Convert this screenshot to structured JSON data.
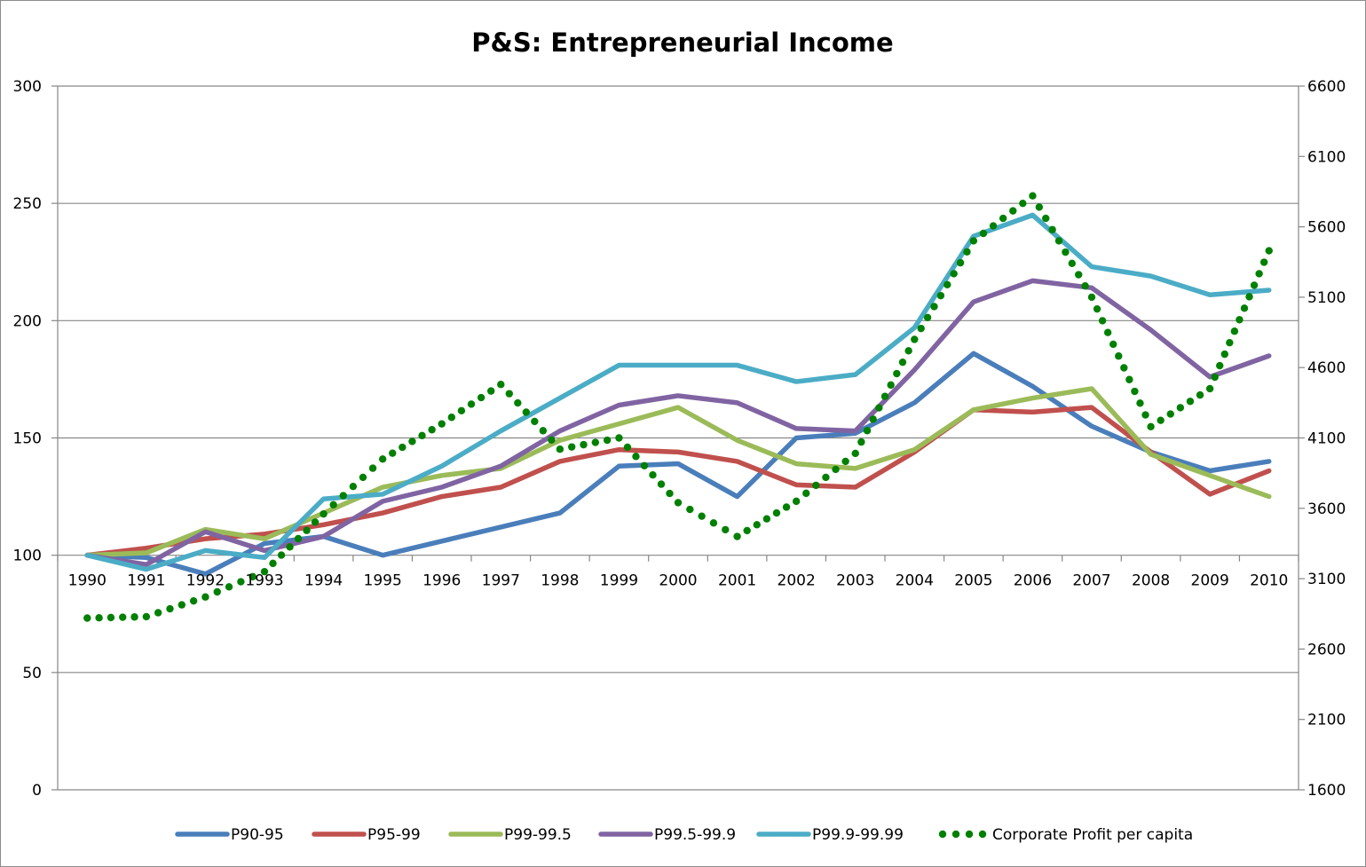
{
  "chart_data": {
    "type": "line",
    "title": "P&S: Entrepreneurial Income",
    "xlabel": "",
    "ylabel": "",
    "y2label": "",
    "categories": [
      "1990",
      "1991",
      "1992",
      "1993",
      "1994",
      "1995",
      "1996",
      "1997",
      "1998",
      "1999",
      "2000",
      "2001",
      "2002",
      "2003",
      "2004",
      "2005",
      "2006",
      "2007",
      "2008",
      "2009",
      "2010"
    ],
    "ylim": [
      0,
      300
    ],
    "yticks": [
      0,
      50,
      100,
      150,
      200,
      250,
      300
    ],
    "y2lim": [
      1600,
      6600
    ],
    "y2ticks": [
      1600,
      2100,
      2600,
      3100,
      3600,
      4100,
      4600,
      5100,
      5600,
      6100,
      6600
    ],
    "x_axis_crosses_at": 100,
    "grid": true,
    "legend_position": "bottom",
    "series": [
      {
        "name": "P90-95",
        "color": "#4a7ebb",
        "axis": "left",
        "style": "solid",
        "values": [
          100,
          99,
          92,
          105,
          108,
          100,
          106,
          112,
          118,
          138,
          139,
          125,
          150,
          152,
          165,
          186,
          172,
          155,
          144,
          136,
          140
        ]
      },
      {
        "name": "P95-99",
        "color": "#c0504d",
        "axis": "left",
        "style": "solid",
        "values": [
          100,
          103,
          107,
          109,
          113,
          118,
          125,
          129,
          140,
          145,
          144,
          140,
          130,
          129,
          144,
          162,
          161,
          163,
          144,
          126,
          136
        ]
      },
      {
        "name": "P99-99.5",
        "color": "#9bbb59",
        "axis": "left",
        "style": "solid",
        "values": [
          100,
          101,
          111,
          107,
          118,
          129,
          134,
          137,
          149,
          156,
          163,
          149,
          139,
          137,
          145,
          162,
          167,
          171,
          143,
          134,
          125
        ]
      },
      {
        "name": "P99.5-99.9",
        "color": "#8064a2",
        "axis": "left",
        "style": "solid",
        "values": [
          100,
          96,
          110,
          102,
          108,
          123,
          129,
          138,
          153,
          164,
          168,
          165,
          154,
          153,
          179,
          208,
          217,
          214,
          196,
          176,
          185
        ]
      },
      {
        "name": "P99.9-99.99",
        "color": "#4bacc6",
        "axis": "left",
        "style": "solid",
        "values": [
          100,
          94,
          102,
          99,
          124,
          126,
          138,
          153,
          167,
          181,
          181,
          181,
          174,
          177,
          197,
          236,
          245,
          223,
          219,
          211,
          213
        ]
      },
      {
        "name": "Corporate Profit per capita",
        "color": "#008000",
        "axis": "right",
        "style": "dotted",
        "values": [
          2820,
          2830,
          2970,
          3150,
          3560,
          3950,
          4200,
          4480,
          4020,
          4100,
          3640,
          3400,
          3650,
          3990,
          4800,
          5500,
          5820,
          5100,
          4180,
          4450,
          5430
        ]
      }
    ]
  }
}
